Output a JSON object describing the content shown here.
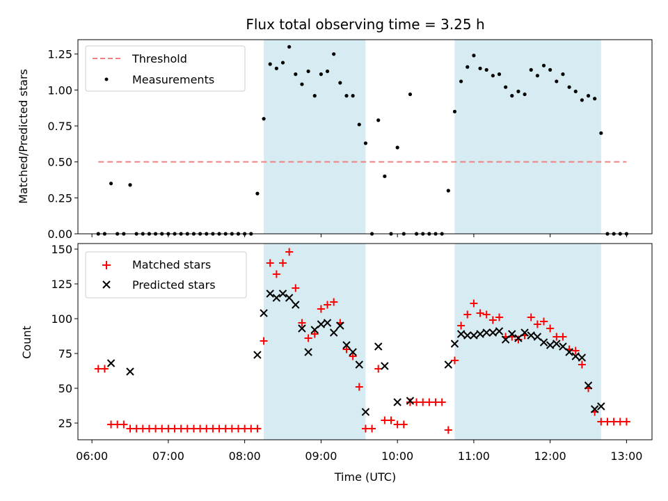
{
  "chart_data": [
    {
      "type": "scatter",
      "title": "Flux total observing time = 3.25 h",
      "xlabel": "",
      "ylabel": "Matched/Predicted stars",
      "xlim": [
        "05:49",
        "13:20"
      ],
      "ylim": [
        0,
        1.35
      ],
      "xticks": [
        "06:00",
        "07:00",
        "08:00",
        "09:00",
        "10:00",
        "11:00",
        "12:00",
        "13:00"
      ],
      "yticks": [
        "0.00",
        "0.25",
        "0.50",
        "0.75",
        "1.00",
        "1.25"
      ],
      "yticks_values": [
        0,
        0.25,
        0.5,
        0.75,
        1.0,
        1.25
      ],
      "shaded_intervals": [
        [
          "08:15",
          "09:35"
        ],
        [
          "10:45",
          "12:40"
        ]
      ],
      "shade_color": "#add8e6",
      "legend_position": "upper-left",
      "threshold": {
        "name": "Threshold",
        "x": [
          "06:05",
          "13:00"
        ],
        "y": 0.5,
        "color": "#f08080"
      },
      "series": [
        {
          "name": "Measurements",
          "color": "#000000",
          "points": [
            [
              "06:05",
              0
            ],
            [
              "06:10",
              0
            ],
            [
              "06:15",
              0.35
            ],
            [
              "06:20",
              0
            ],
            [
              "06:25",
              0
            ],
            [
              "06:30",
              0.34
            ],
            [
              "06:35",
              0
            ],
            [
              "06:40",
              0
            ],
            [
              "06:45",
              0
            ],
            [
              "06:50",
              0
            ],
            [
              "06:55",
              0
            ],
            [
              "07:00",
              0
            ],
            [
              "07:05",
              0
            ],
            [
              "07:10",
              0
            ],
            [
              "07:15",
              0
            ],
            [
              "07:20",
              0
            ],
            [
              "07:25",
              0
            ],
            [
              "07:30",
              0
            ],
            [
              "07:35",
              0
            ],
            [
              "07:40",
              0
            ],
            [
              "07:45",
              0
            ],
            [
              "07:50",
              0
            ],
            [
              "07:55",
              0
            ],
            [
              "08:00",
              0
            ],
            [
              "08:05",
              0
            ],
            [
              "08:10",
              0.28
            ],
            [
              "08:15",
              0.8
            ],
            [
              "08:20",
              1.18
            ],
            [
              "08:25",
              1.15
            ],
            [
              "08:30",
              1.19
            ],
            [
              "08:35",
              1.3
            ],
            [
              "08:40",
              1.11
            ],
            [
              "08:45",
              1.04
            ],
            [
              "08:50",
              1.13
            ],
            [
              "08:55",
              0.96
            ],
            [
              "09:00",
              1.11
            ],
            [
              "09:05",
              1.13
            ],
            [
              "09:10",
              1.25
            ],
            [
              "09:15",
              1.05
            ],
            [
              "09:20",
              0.96
            ],
            [
              "09:25",
              0.96
            ],
            [
              "09:30",
              0.76
            ],
            [
              "09:35",
              0.63
            ],
            [
              "09:40",
              0
            ],
            [
              "09:45",
              0.79
            ],
            [
              "09:50",
              0.4
            ],
            [
              "09:55",
              0
            ],
            [
              "10:00",
              0.6
            ],
            [
              "10:05",
              0
            ],
            [
              "10:10",
              0.97
            ],
            [
              "10:15",
              0
            ],
            [
              "10:20",
              0
            ],
            [
              "10:25",
              0
            ],
            [
              "10:30",
              0
            ],
            [
              "10:35",
              0
            ],
            [
              "10:40",
              0.3
            ],
            [
              "10:45",
              0.85
            ],
            [
              "10:50",
              1.06
            ],
            [
              "10:55",
              1.16
            ],
            [
              "11:00",
              1.24
            ],
            [
              "11:05",
              1.15
            ],
            [
              "11:10",
              1.14
            ],
            [
              "11:15",
              1.1
            ],
            [
              "11:20",
              1.11
            ],
            [
              "11:25",
              1.02
            ],
            [
              "11:30",
              0.96
            ],
            [
              "11:35",
              0.99
            ],
            [
              "11:40",
              0.97
            ],
            [
              "11:45",
              1.14
            ],
            [
              "11:50",
              1.1
            ],
            [
              "11:55",
              1.17
            ],
            [
              "12:00",
              1.14
            ],
            [
              "12:05",
              1.06
            ],
            [
              "12:10",
              1.11
            ],
            [
              "12:15",
              1.02
            ],
            [
              "12:20",
              0.99
            ],
            [
              "12:25",
              0.93
            ],
            [
              "12:30",
              0.96
            ],
            [
              "12:35",
              0.94
            ],
            [
              "12:40",
              0.7
            ],
            [
              "12:45",
              0
            ],
            [
              "12:50",
              0
            ],
            [
              "12:55",
              0
            ],
            [
              "13:00",
              0
            ]
          ]
        }
      ]
    },
    {
      "type": "scatter",
      "title": "",
      "xlabel": "Time (UTC)",
      "ylabel": "Count",
      "xlim": [
        "05:49",
        "13:20"
      ],
      "ylim": [
        13,
        154
      ],
      "xticks": [
        "06:00",
        "07:00",
        "08:00",
        "09:00",
        "10:00",
        "11:00",
        "12:00",
        "13:00"
      ],
      "yticks": [
        "25",
        "50",
        "75",
        "100",
        "125",
        "150"
      ],
      "yticks_values": [
        25,
        50,
        75,
        100,
        125,
        150
      ],
      "shaded_intervals": [
        [
          "08:15",
          "09:35"
        ],
        [
          "10:45",
          "12:40"
        ]
      ],
      "shade_color": "#add8e6",
      "legend_position": "upper-left",
      "series": [
        {
          "name": "Matched stars",
          "marker": "plus",
          "color": "#ff0000",
          "points": [
            [
              "06:05",
              64
            ],
            [
              "06:10",
              64
            ],
            [
              "06:15",
              24
            ],
            [
              "06:20",
              24
            ],
            [
              "06:25",
              24
            ],
            [
              "06:30",
              21
            ],
            [
              "06:35",
              21
            ],
            [
              "06:40",
              21
            ],
            [
              "06:45",
              21
            ],
            [
              "06:50",
              21
            ],
            [
              "06:55",
              21
            ],
            [
              "07:00",
              21
            ],
            [
              "07:05",
              21
            ],
            [
              "07:10",
              21
            ],
            [
              "07:15",
              21
            ],
            [
              "07:20",
              21
            ],
            [
              "07:25",
              21
            ],
            [
              "07:30",
              21
            ],
            [
              "07:35",
              21
            ],
            [
              "07:40",
              21
            ],
            [
              "07:45",
              21
            ],
            [
              "07:50",
              21
            ],
            [
              "07:55",
              21
            ],
            [
              "08:00",
              21
            ],
            [
              "08:05",
              21
            ],
            [
              "08:10",
              21
            ],
            [
              "08:15",
              84
            ],
            [
              "08:20",
              140
            ],
            [
              "08:25",
              132
            ],
            [
              "08:30",
              140
            ],
            [
              "08:35",
              148
            ],
            [
              "08:40",
              122
            ],
            [
              "08:45",
              97
            ],
            [
              "08:50",
              86
            ],
            [
              "08:55",
              89
            ],
            [
              "09:00",
              107
            ],
            [
              "09:05",
              110
            ],
            [
              "09:10",
              112
            ],
            [
              "09:15",
              97
            ],
            [
              "09:20",
              78
            ],
            [
              "09:25",
              73
            ],
            [
              "09:30",
              51
            ],
            [
              "09:35",
              21
            ],
            [
              "09:40",
              21
            ],
            [
              "09:45",
              64
            ],
            [
              "09:50",
              27
            ],
            [
              "09:55",
              27
            ],
            [
              "10:00",
              24
            ],
            [
              "10:05",
              24
            ],
            [
              "10:10",
              40
            ],
            [
              "10:15",
              40
            ],
            [
              "10:20",
              40
            ],
            [
              "10:25",
              40
            ],
            [
              "10:30",
              40
            ],
            [
              "10:35",
              40
            ],
            [
              "10:40",
              20
            ],
            [
              "10:45",
              70
            ],
            [
              "10:50",
              95
            ],
            [
              "10:55",
              103
            ],
            [
              "11:00",
              111
            ],
            [
              "11:05",
              104
            ],
            [
              "11:10",
              103
            ],
            [
              "11:15",
              99
            ],
            [
              "11:20",
              101
            ],
            [
              "11:25",
              87
            ],
            [
              "11:30",
              87
            ],
            [
              "11:35",
              85
            ],
            [
              "11:40",
              88
            ],
            [
              "11:45",
              101
            ],
            [
              "11:50",
              96
            ],
            [
              "11:55",
              98
            ],
            [
              "12:00",
              93
            ],
            [
              "12:05",
              87
            ],
            [
              "12:10",
              87
            ],
            [
              "12:15",
              78
            ],
            [
              "12:20",
              77
            ],
            [
              "12:25",
              67
            ],
            [
              "12:30",
              50
            ],
            [
              "12:35",
              33
            ],
            [
              "12:40",
              26
            ],
            [
              "12:45",
              26
            ],
            [
              "12:50",
              26
            ],
            [
              "12:55",
              26
            ],
            [
              "13:00",
              26
            ]
          ]
        },
        {
          "name": "Predicted stars",
          "marker": "x",
          "color": "#000000",
          "points": [
            [
              "06:15",
              68
            ],
            [
              "06:30",
              62
            ],
            [
              "08:10",
              74
            ],
            [
              "08:15",
              104
            ],
            [
              "08:20",
              118
            ],
            [
              "08:25",
              115
            ],
            [
              "08:30",
              118
            ],
            [
              "08:35",
              115
            ],
            [
              "08:40",
              110
            ],
            [
              "08:45",
              93
            ],
            [
              "08:50",
              76
            ],
            [
              "08:55",
              92
            ],
            [
              "09:00",
              96
            ],
            [
              "09:05",
              97
            ],
            [
              "09:10",
              90
            ],
            [
              "09:15",
              95
            ],
            [
              "09:20",
              81
            ],
            [
              "09:25",
              76
            ],
            [
              "09:30",
              67
            ],
            [
              "09:35",
              33
            ],
            [
              "09:45",
              80
            ],
            [
              "09:50",
              66
            ],
            [
              "10:00",
              40
            ],
            [
              "10:10",
              41
            ],
            [
              "10:40",
              67
            ],
            [
              "10:45",
              82
            ],
            [
              "10:50",
              89
            ],
            [
              "10:55",
              88
            ],
            [
              "11:00",
              88
            ],
            [
              "11:05",
              89
            ],
            [
              "11:10",
              90
            ],
            [
              "11:15",
              90
            ],
            [
              "11:20",
              91
            ],
            [
              "11:25",
              85
            ],
            [
              "11:30",
              89
            ],
            [
              "11:35",
              86
            ],
            [
              "11:40",
              90
            ],
            [
              "11:45",
              88
            ],
            [
              "11:50",
              87
            ],
            [
              "11:55",
              83
            ],
            [
              "12:00",
              81
            ],
            [
              "12:05",
              82
            ],
            [
              "12:10",
              80
            ],
            [
              "12:15",
              76
            ],
            [
              "12:20",
              73
            ],
            [
              "12:25",
              72
            ],
            [
              "12:30",
              52
            ],
            [
              "12:35",
              35
            ],
            [
              "12:40",
              37
            ]
          ]
        }
      ]
    }
  ]
}
